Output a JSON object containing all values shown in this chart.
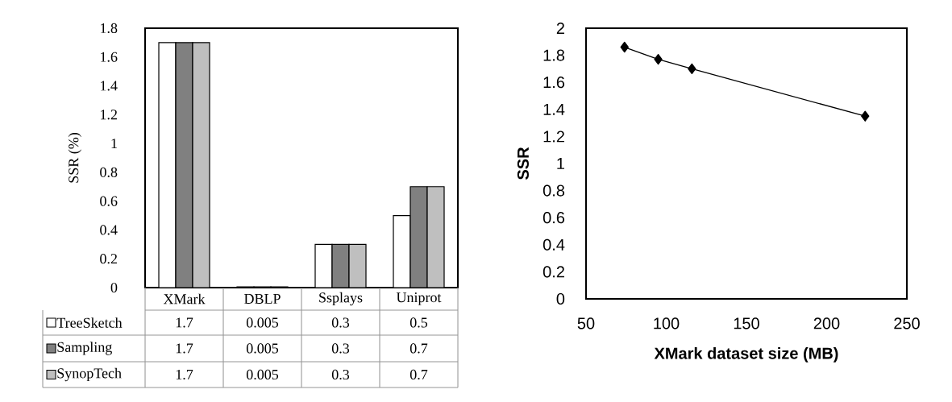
{
  "chart_data": [
    {
      "type": "bar",
      "ylabel": "SSR (%)",
      "categories": [
        "XMark",
        "DBLP",
        "Ssplays",
        "Uniprot"
      ],
      "series": [
        {
          "name": "TreeSketch",
          "color": "#ffffff",
          "values": [
            1.7,
            0.005,
            0.3,
            0.5
          ]
        },
        {
          "name": "Sampling",
          "color": "#808080",
          "values": [
            1.7,
            0.005,
            0.3,
            0.7
          ]
        },
        {
          "name": "SynopTech",
          "color": "#bfbfbf",
          "values": [
            1.7,
            0.005,
            0.3,
            0.7
          ]
        }
      ],
      "ylim": [
        0,
        1.8
      ],
      "yticks": [
        0,
        0.2,
        0.4,
        0.6,
        0.8,
        1,
        1.2,
        1.4,
        1.6,
        1.8
      ],
      "data_labels": true,
      "legend": "bottom",
      "grid": false
    },
    {
      "type": "line",
      "xlabel": "XMark dataset size  (MB)",
      "ylabel": "SSR",
      "series": [
        {
          "color": "#000000",
          "x": [
            74,
            95,
            116,
            224
          ],
          "values": [
            1.86,
            1.77,
            1.7,
            1.35
          ]
        }
      ],
      "xlim": [
        50,
        250
      ],
      "xticks": [
        50,
        100,
        150,
        200,
        250
      ],
      "ylim": [
        0,
        2
      ],
      "yticks": [
        0,
        0.2,
        0.4,
        0.6,
        0.8,
        1,
        1.2,
        1.4,
        1.6,
        1.8,
        2
      ],
      "marker": "diamond",
      "line_style": "solid",
      "grid": false
    }
  ]
}
